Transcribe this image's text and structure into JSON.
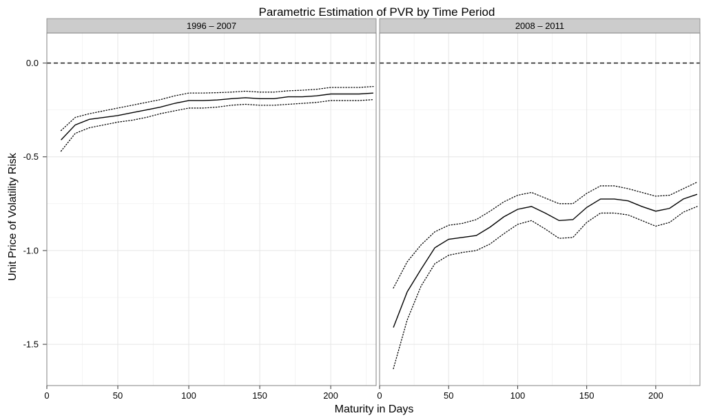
{
  "chart_data": {
    "type": "line",
    "title": "Parametric Estimation of PVR by Time Period",
    "xlabel": "Maturity in Days",
    "ylabel": "Unit Price of Volatility Risk",
    "xlim": [
      0,
      232
    ],
    "ylim": [
      -1.72,
      0.16
    ],
    "x_ticks": [
      0,
      50,
      100,
      150,
      200
    ],
    "y_ticks": [
      0.0,
      -0.5,
      -1.0,
      -1.5
    ],
    "y_tick_labels": [
      "0.0",
      "-0.5",
      "-1.0",
      "-1.5"
    ],
    "reference_line": {
      "y": 0,
      "style": "dashed"
    },
    "grid": true,
    "facets": [
      {
        "label": "1996 – 2007",
        "x": [
          10,
          20,
          30,
          40,
          50,
          60,
          70,
          80,
          90,
          100,
          110,
          120,
          130,
          140,
          150,
          160,
          170,
          180,
          190,
          200,
          210,
          220,
          230
        ],
        "series": [
          {
            "style": "solid",
            "values": [
              -0.41,
              -0.33,
              -0.3,
              -0.29,
              -0.28,
              -0.265,
              -0.25,
              -0.235,
              -0.215,
              -0.2,
              -0.2,
              -0.197,
              -0.19,
              -0.185,
              -0.19,
              -0.19,
              -0.18,
              -0.18,
              -0.175,
              -0.165,
              -0.165,
              -0.165,
              -0.16
            ]
          },
          {
            "style": "dotted",
            "values": [
              -0.36,
              -0.29,
              -0.27,
              -0.255,
              -0.24,
              -0.225,
              -0.21,
              -0.195,
              -0.175,
              -0.16,
              -0.16,
              -0.158,
              -0.155,
              -0.15,
              -0.155,
              -0.155,
              -0.148,
              -0.145,
              -0.14,
              -0.13,
              -0.13,
              -0.13,
              -0.125
            ]
          },
          {
            "style": "dotted",
            "values": [
              -0.47,
              -0.375,
              -0.345,
              -0.33,
              -0.315,
              -0.305,
              -0.29,
              -0.27,
              -0.255,
              -0.24,
              -0.24,
              -0.235,
              -0.225,
              -0.22,
              -0.225,
              -0.225,
              -0.22,
              -0.215,
              -0.21,
              -0.2,
              -0.2,
              -0.2,
              -0.195
            ]
          }
        ]
      },
      {
        "label": "2008 – 2011",
        "x": [
          10,
          20,
          30,
          40,
          50,
          60,
          70,
          80,
          90,
          100,
          110,
          120,
          130,
          140,
          150,
          160,
          170,
          180,
          190,
          200,
          210,
          220,
          230
        ],
        "series": [
          {
            "style": "solid",
            "values": [
              -1.41,
              -1.22,
              -1.1,
              -0.985,
              -0.94,
              -0.93,
              -0.92,
              -0.875,
              -0.82,
              -0.78,
              -0.765,
              -0.8,
              -0.84,
              -0.835,
              -0.77,
              -0.725,
              -0.725,
              -0.735,
              -0.765,
              -0.79,
              -0.775,
              -0.725,
              -0.7
            ]
          },
          {
            "style": "dotted",
            "values": [
              -1.2,
              -1.06,
              -0.97,
              -0.9,
              -0.865,
              -0.855,
              -0.835,
              -0.79,
              -0.74,
              -0.705,
              -0.69,
              -0.72,
              -0.75,
              -0.75,
              -0.695,
              -0.655,
              -0.655,
              -0.67,
              -0.69,
              -0.71,
              -0.705,
              -0.67,
              -0.635
            ]
          },
          {
            "style": "dotted",
            "values": [
              -1.63,
              -1.37,
              -1.19,
              -1.07,
              -1.025,
              -1.01,
              -1.0,
              -0.965,
              -0.91,
              -0.86,
              -0.84,
              -0.885,
              -0.935,
              -0.93,
              -0.85,
              -0.8,
              -0.8,
              -0.81,
              -0.84,
              -0.87,
              -0.85,
              -0.795,
              -0.765
            ]
          }
        ]
      }
    ]
  }
}
